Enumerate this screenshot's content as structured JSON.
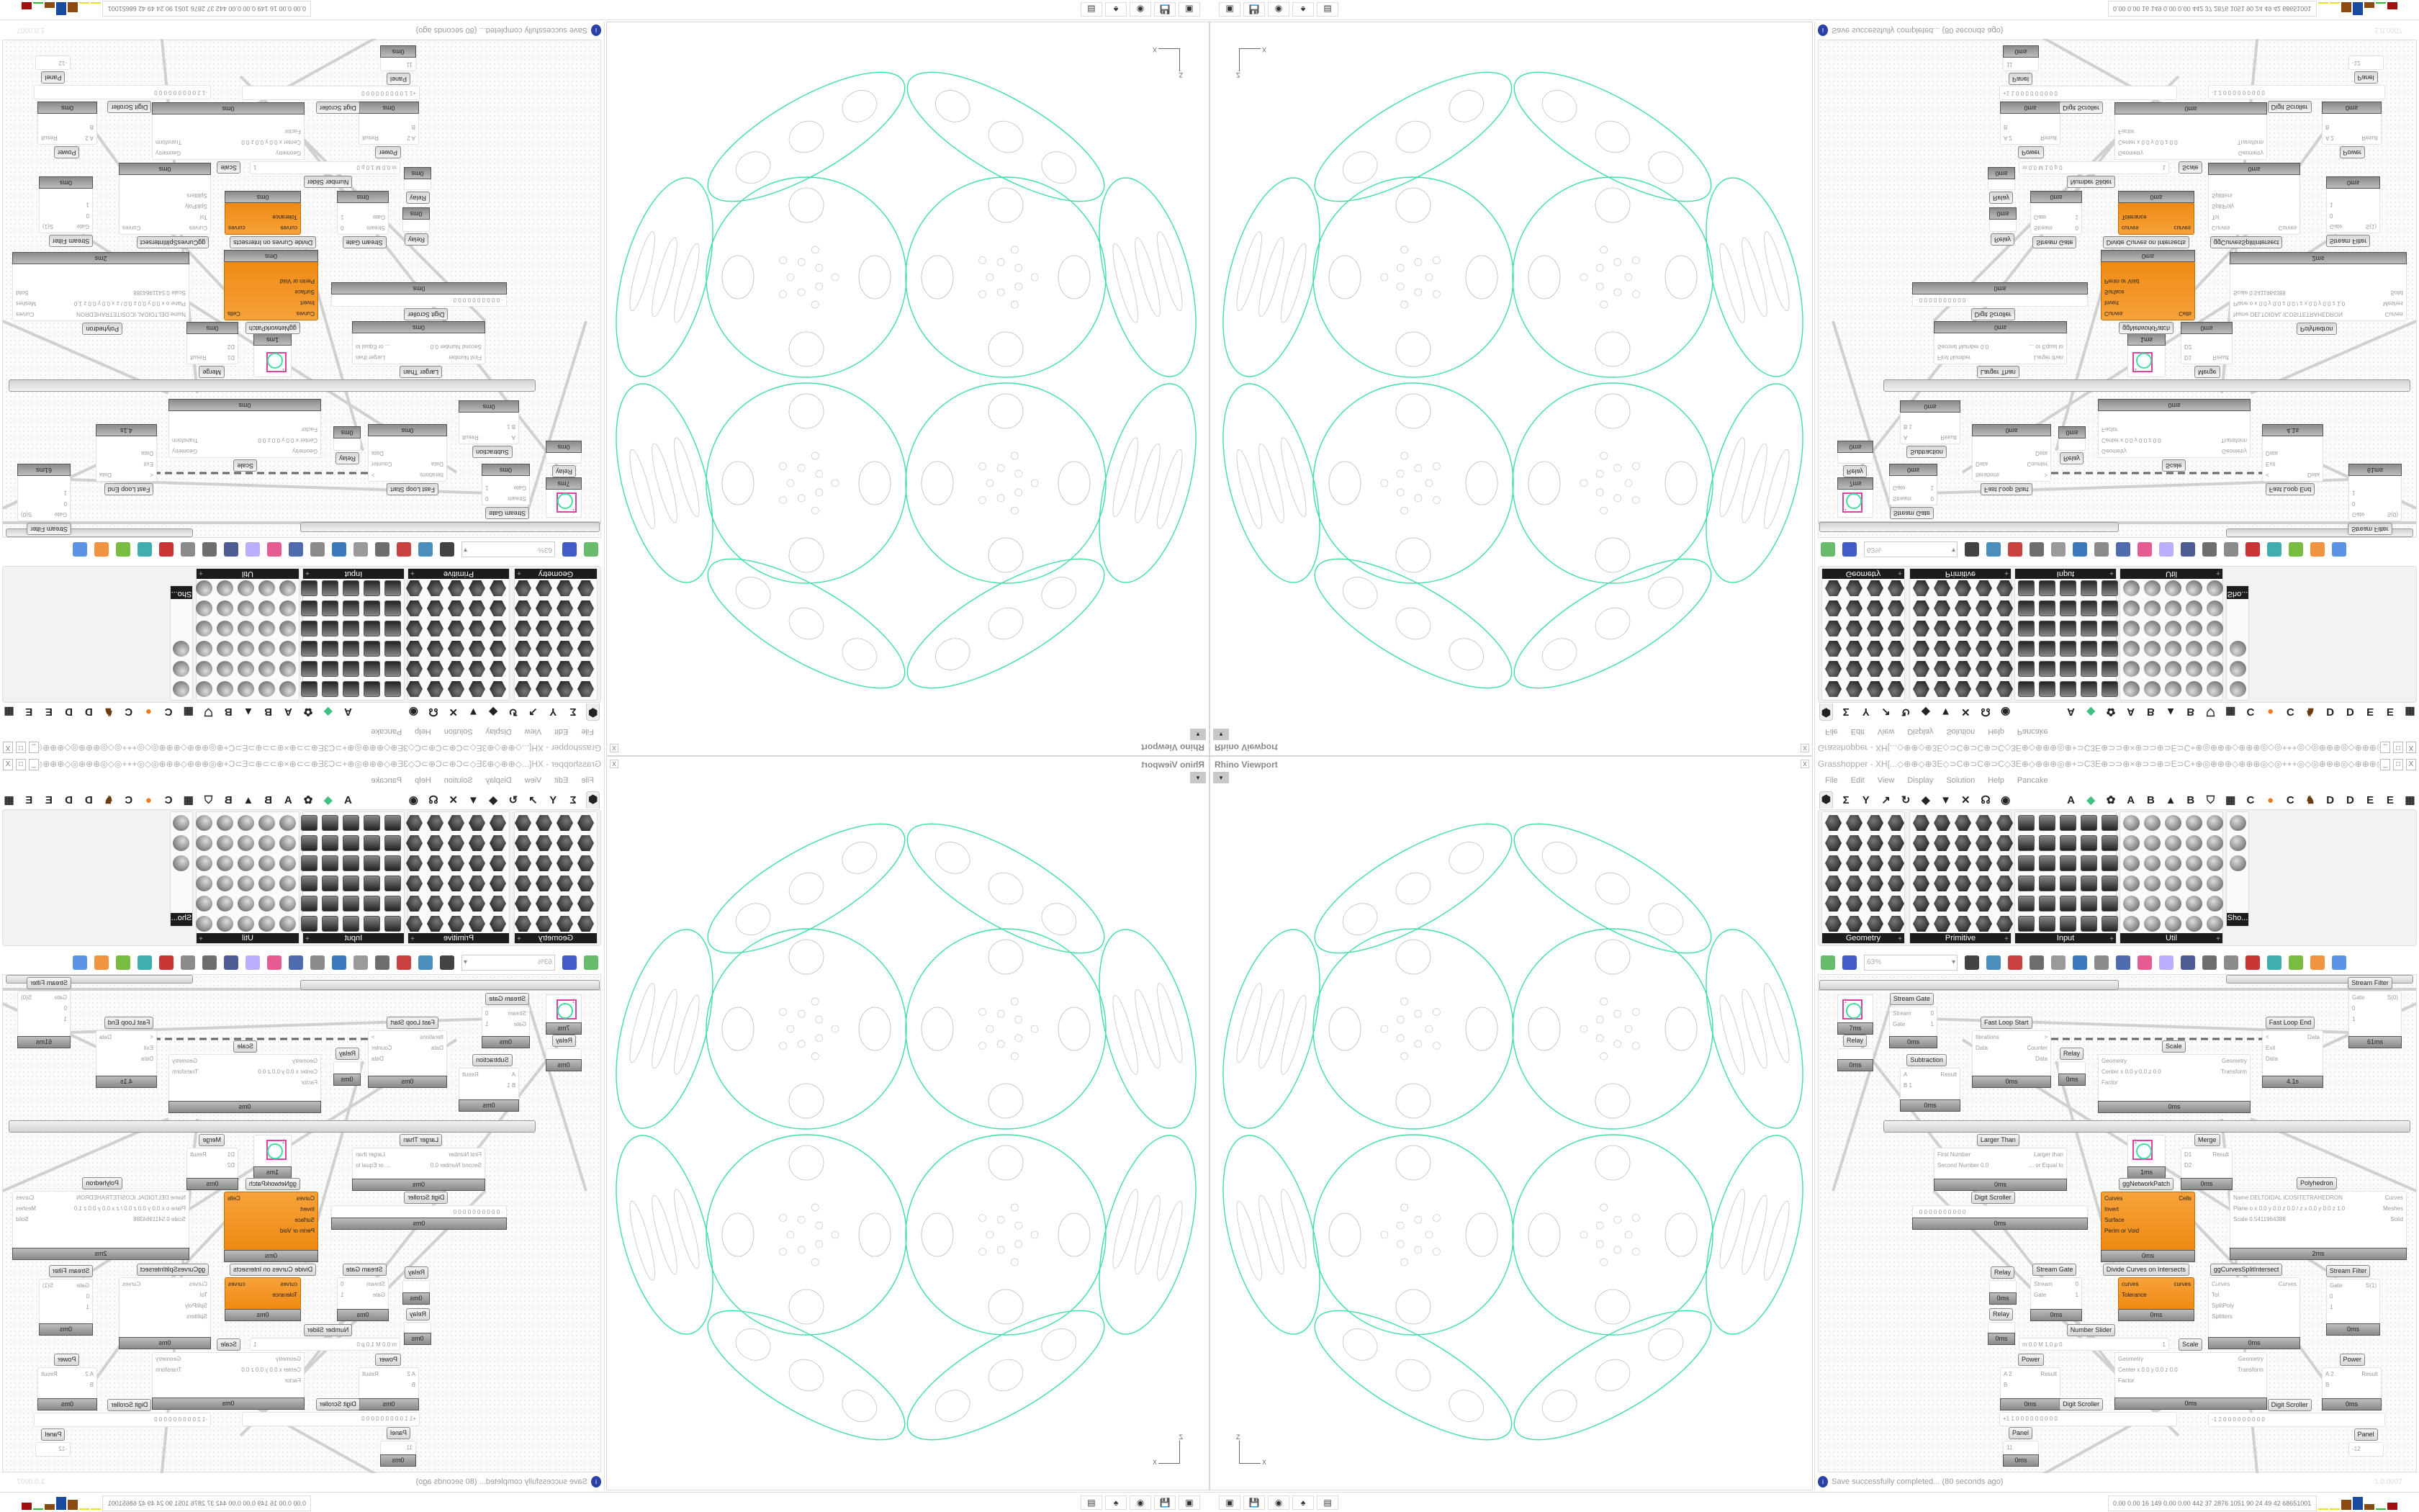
{
  "viewport": {
    "title": "Rhino Viewport",
    "close": "x",
    "dropdown": "▾",
    "axis_x": "X",
    "axis_z": "Z",
    "curve_color": "#3ee0a0",
    "detail_color": "#bbbbbb"
  },
  "grasshopper": {
    "title": "Grasshopper - XH[...◇⊕⊕◇⊕3E◇⊃C⊕⊃C⊕⊃C◇3E⊕◇⊕⊕⊕◎⊕+⊃C3E⊕⊃⊃⊕×⊕⊃⊃⊕⊃E⊃C+⊕◎⊕⊕⊕◇⊕⊕⊕◎◇◎+++◎◇◎⊕⊕⊕◎◇⊕⊕⊕◎⊕+⊃C3E⊕⊃⊃×⊕⊃...",
    "window_buttons": [
      "_",
      "□",
      "X"
    ],
    "menu": [
      "File",
      "Edit",
      "View",
      "Display",
      "Solution",
      "Help",
      "Pancake"
    ],
    "tabs": [
      {
        "glyph": "⬢",
        "icon": "params-icon"
      },
      {
        "glyph": "Σ",
        "icon": "maths-icon"
      },
      {
        "glyph": "Y",
        "icon": "sets-icon"
      },
      {
        "glyph": "↗",
        "icon": "vector-icon"
      },
      {
        "glyph": "↻",
        "icon": "curve-icon"
      },
      {
        "glyph": "◆",
        "icon": "surface-icon"
      },
      {
        "glyph": "▼",
        "icon": "mesh-icon"
      },
      {
        "glyph": "✕",
        "icon": "intersect-icon"
      },
      {
        "glyph": "☊",
        "icon": "transform-icon"
      },
      {
        "glyph": "◉",
        "icon": "display-icon"
      },
      {
        "glyph": "A",
        "icon": "plugin-a-icon"
      },
      {
        "glyph": "◆",
        "icon": "crystal-icon"
      },
      {
        "glyph": "✿",
        "icon": "gear-flower-icon"
      },
      {
        "glyph": "A",
        "icon": "plugin-a2-icon"
      },
      {
        "glyph": "B",
        "icon": "plugin-b-icon"
      },
      {
        "glyph": "▲",
        "icon": "mountain-icon"
      },
      {
        "glyph": "B",
        "icon": "plugin-b2-icon"
      },
      {
        "glyph": "⛉",
        "icon": "shield-icon"
      },
      {
        "glyph": "▦",
        "icon": "grid-icon"
      },
      {
        "glyph": "C",
        "icon": "plugin-c-icon"
      },
      {
        "glyph": "●",
        "icon": "orange-circle-icon"
      },
      {
        "glyph": "C",
        "icon": "plugin-c2-icon"
      },
      {
        "glyph": "♞",
        "icon": "rooster-icon"
      },
      {
        "glyph": "D",
        "icon": "plugin-d-icon"
      },
      {
        "glyph": "D",
        "icon": "plugin-d2-icon"
      },
      {
        "glyph": "E",
        "icon": "plugin-e-icon"
      },
      {
        "glyph": "E",
        "icon": "plugin-e2-icon"
      },
      {
        "glyph": "▦",
        "icon": "qr-icon"
      }
    ],
    "palettes": [
      {
        "label": "Geometry"
      },
      {
        "label": "Primitive"
      },
      {
        "label": "Input"
      },
      {
        "label": "Util"
      },
      {
        "label": "Sho..."
      }
    ],
    "toolbar": {
      "zoom": "63%",
      "icons": [
        "new-document-icon",
        "save-icon",
        "zoom-extents-icon",
        "preview-eye-icon",
        "sketch-icon",
        "bake-icon",
        "at-icon",
        "gha-icon",
        "document-icon",
        "search-icon",
        "package-icon",
        "bulb-icon",
        "wires-icon",
        "mesh-preview-icon",
        "wireframe-icon",
        "shaded-icon",
        "teal-icon",
        "green-icon",
        "orange-sphere-icon",
        "blue-sphere-icon"
      ]
    },
    "canvas": {
      "nodes": [
        {
          "title": "Stream Filter",
          "inputs": [
            "Gate",
            "0",
            "1"
          ],
          "outputs": [
            "S(0)"
          ],
          "time": "61ms"
        },
        {
          "title": "",
          "inputs": [
            "1"
          ],
          "outputs": [],
          "time": "7ms",
          "preview": true
        },
        {
          "title": "Relay",
          "inputs": [],
          "outputs": [],
          "time": "0ms"
        },
        {
          "title": "Stream Gate",
          "inputs": [
            "Stream",
            "Gate"
          ],
          "outputs": [
            "0",
            "1"
          ],
          "time": "0ms"
        },
        {
          "title": "Fast Loop Start",
          "inputs": [
            "Iterations",
            "Data"
          ],
          "outputs": [
            ">",
            "Counter",
            "Data"
          ],
          "time": "0ms"
        },
        {
          "title": "Relay",
          "inputs": [],
          "outputs": [],
          "time": "0ms"
        },
        {
          "title": "Subtraction",
          "inputs": [
            "A",
            "B 1"
          ],
          "outputs": [
            "Result"
          ],
          "time": "0ms"
        },
        {
          "title": "Scale",
          "inputs": [
            "Geometry",
            "Center x 0.0 y 0.0 z 0.0",
            "Factor"
          ],
          "outputs": [
            "Geometry",
            "Transform"
          ],
          "time": "0ms"
        },
        {
          "title": "Fast Loop End",
          "inputs": [
            "<",
            "Exit",
            "Data"
          ],
          "outputs": [
            "Data"
          ],
          "time": "4.1s"
        },
        {
          "title": "Larger Than",
          "inputs": [
            "First Number",
            "Second Number 0.0"
          ],
          "outputs": [
            "Larger than",
            "... or Equal to"
          ],
          "time": "0ms"
        },
        {
          "title": "",
          "inputs": [
            "1"
          ],
          "outputs": [],
          "time": "1ms",
          "preview": true
        },
        {
          "title": "Merge",
          "inputs": [
            "D1",
            "D2"
          ],
          "outputs": [
            "Result"
          ],
          "time": "0ms"
        },
        {
          "title": "Polyhedron",
          "inputs": [
            "Name DELTOIDAL ICOSITETRAHEDRON",
            "Plane o x 0.0 y 0.0 z 0.0 / z x 0.0 y 0.0 z 1.0",
            "Scale 0.5411964388"
          ],
          "outputs": [
            "Curves",
            "Meshes",
            "Solid"
          ],
          "time": "2ms"
        },
        {
          "title": "Digit Scroller",
          "inputs": [
            "· 0 0 0 0 0 0 0 0 0 0"
          ],
          "outputs": [],
          "time": "0ms"
        },
        {
          "title": "ggNetworkPatch",
          "inputs": [
            "Curves",
            "Invert",
            "Surface",
            "Perim or Void"
          ],
          "outputs": [
            "Cells"
          ],
          "time": "0ms",
          "orange": true
        },
        {
          "title": "Relay",
          "inputs": [],
          "outputs": [],
          "time": "0ms"
        },
        {
          "title": "Relay",
          "inputs": [],
          "outputs": [],
          "time": "0ms"
        },
        {
          "title": "Stream Gate",
          "inputs": [
            "Stream",
            "Gate"
          ],
          "outputs": [
            "0",
            "1"
          ],
          "time": "0ms"
        },
        {
          "title": "Divide Curves on Intersects",
          "inputs": [
            "curves",
            "Tolerance"
          ],
          "outputs": [
            "curves"
          ],
          "time": "0ms",
          "orange": true
        },
        {
          "title": "ggCurvesSplitIntersect",
          "inputs": [
            "Curves",
            "Tol",
            "SplitPoly",
            "Splitters"
          ],
          "outputs": [
            "Curves"
          ],
          "time": "0ms"
        },
        {
          "title": "Stream Filter",
          "inputs": [
            "Gate",
            "0",
            "1"
          ],
          "outputs": [
            "S(1)"
          ],
          "time": "0ms"
        },
        {
          "title": "Number Slider",
          "inputs": [
            "m 0.0  M 1.0  p 0"
          ],
          "outputs": [
            "1"
          ],
          "time": ""
        },
        {
          "title": "Scale",
          "inputs": [
            "Geometry",
            "Center x 0.0 y 0.0 z 0.0",
            "Factor"
          ],
          "outputs": [
            "Geometry",
            "Transform"
          ],
          "time": "0ms"
        },
        {
          "title": "Power",
          "inputs": [
            "A 2",
            "B"
          ],
          "outputs": [
            "Result"
          ],
          "time": "0ms"
        },
        {
          "title": "Power",
          "inputs": [
            "A 2",
            "B"
          ],
          "outputs": [
            "Result"
          ],
          "time": "0ms"
        },
        {
          "title": "Digit Scroller",
          "inputs": [
            "+1 1  0 0 0 0 0 0 0 0 0"
          ],
          "outputs": [],
          "time": ""
        },
        {
          "title": "Digit Scroller",
          "inputs": [
            "-1 2  0 0 0 0 0 0 0 0 0"
          ],
          "outputs": [],
          "time": ""
        },
        {
          "title": "Panel",
          "inputs": [
            "11"
          ],
          "outputs": [],
          "time": "0ms"
        },
        {
          "title": "Panel",
          "inputs": [
            "-12"
          ],
          "outputs": [],
          "time": ""
        }
      ]
    },
    "status": {
      "message": "Save successfully completed... (80 seconds ago)",
      "version": "1.0.0007"
    }
  },
  "taskbar": {
    "icons": [
      {
        "glyph": "▣",
        "icon": "terminal-icon"
      },
      {
        "glyph": "💾",
        "icon": "floppy-64-icon"
      },
      {
        "glyph": "◉",
        "icon": "firefox-icon"
      },
      {
        "glyph": "♠",
        "icon": "inkscape-icon"
      },
      {
        "glyph": "▤",
        "icon": "calculator-icon"
      }
    ],
    "sysinfo": "0.00 0.00  16  149  0.00 0.00  442  37  2876 1051  90  24  49  42  68651001",
    "bar_colors": [
      "#e8e030",
      "#e8e030",
      "#8a4a10",
      "#1a4aa0",
      "#8a4a10",
      "#30c030",
      "#a01010"
    ]
  }
}
